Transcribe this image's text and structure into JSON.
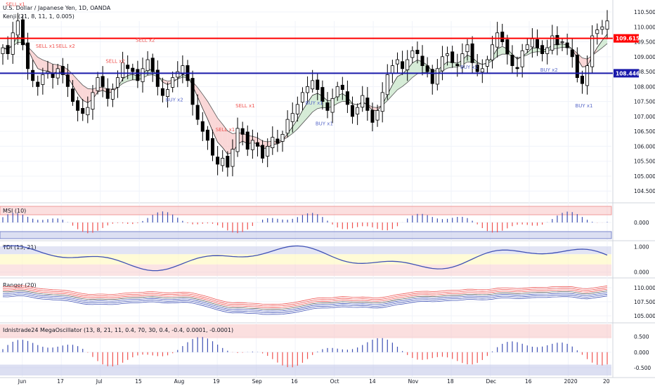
{
  "header": {
    "symbol_title": "U.S. Dollar / Japanese Yen, 1D, OANDA",
    "main_indicator": "Kenji (21, 8, 11, 1, 0.005)"
  },
  "colors": {
    "up": "#ffffff",
    "down": "#000000",
    "resistance": "#ff0000",
    "support": "#1a1aaa",
    "sell": "#ef5350",
    "buy": "#5b6bc9"
  },
  "chart_data": [
    {
      "type": "candlestick",
      "panel": "price",
      "title": "U.S. Dollar / Japanese Yen, 1D, OANDA",
      "x_tick_labels": [
        "Jun",
        "17",
        "Jul",
        "15",
        "Aug",
        "19",
        "Sep",
        "16",
        "Oct",
        "14",
        "Nov",
        "18",
        "Dec",
        "16",
        "2020",
        "20"
      ],
      "y_tick_labels": [
        "104.500",
        "105.000",
        "105.500",
        "106.000",
        "106.500",
        "107.000",
        "107.500",
        "108.000",
        "108.500",
        "109.000",
        "109.500",
        "110.000",
        "110.500"
      ],
      "ylim": [
        104.2,
        110.9
      ],
      "levels": [
        {
          "label": "109.615",
          "value": 109.615,
          "color": "#ff0000"
        },
        {
          "label": "108.446",
          "value": 108.446,
          "color": "#1a1aaa"
        }
      ],
      "close": [
        109.3,
        109.1,
        109.8,
        110.2,
        109.4,
        108.6,
        108.2,
        108.0,
        108.4,
        108.5,
        108.3,
        108.6,
        108.4,
        108.0,
        107.5,
        107.2,
        107.1,
        107.3,
        107.8,
        108.3,
        108.0,
        107.6,
        107.9,
        108.3,
        108.8,
        108.6,
        108.5,
        108.2,
        108.6,
        108.9,
        108.5,
        108.0,
        107.7,
        107.9,
        108.3,
        108.5,
        108.7,
        108.2,
        107.4,
        106.9,
        106.5,
        106.2,
        105.7,
        105.4,
        105.6,
        105.3,
        105.9,
        106.6,
        106.4,
        105.9,
        106.2,
        106.0,
        105.6,
        106.0,
        106.3,
        106.1,
        106.4,
        106.9,
        107.1,
        107.4,
        107.8,
        108.0,
        108.2,
        107.9,
        107.5,
        107.2,
        107.6,
        108.0,
        107.9,
        107.4,
        107.0,
        107.3,
        107.7,
        107.2,
        106.8,
        107.2,
        107.8,
        108.4,
        108.7,
        108.9,
        108.6,
        108.9,
        109.2,
        109.1,
        108.7,
        108.5,
        108.1,
        108.6,
        109.0,
        109.1,
        108.8,
        108.7,
        109.1,
        109.4,
        108.8,
        108.5,
        108.6,
        108.9,
        109.4,
        109.8,
        109.5,
        109.1,
        108.7,
        108.6,
        109.2,
        109.4,
        109.6,
        109.3,
        109.1,
        109.3,
        109.7,
        109.4,
        109.5,
        109.3,
        109.0,
        108.3,
        108.1,
        108.7,
        109.7,
        109.9,
        110.0,
        110.2
      ]
    },
    {
      "type": "bar",
      "panel": "oscillator",
      "title": "MSI (10)",
      "y_tick_labels": [
        "0.000"
      ],
      "ylim": [
        -1.0,
        1.0
      ]
    },
    {
      "type": "line",
      "panel": "oscillator",
      "title": "TDI (13, 21)",
      "y_tick_labels": [
        "1.000",
        "0.000"
      ],
      "ylim": [
        -0.2,
        1.2
      ]
    },
    {
      "type": "line",
      "panel": "bands",
      "title": "Ranger (20)",
      "y_tick_labels": [
        "110.000",
        "107.500",
        "105.000"
      ],
      "ylim": [
        104.0,
        111.5
      ]
    },
    {
      "type": "bar",
      "panel": "oscillator",
      "title": "Idnistrade24 MegaOscillator (13, 8, 21, 11, 0.4, 70, 30, 0.4, -0.4, 0.0001, -0.0001)",
      "y_tick_labels": [
        "0.500",
        "0.000",
        "-0.500"
      ],
      "ylim": [
        -0.75,
        0.9
      ]
    }
  ],
  "annotations": [
    {
      "text": "SELL x1",
      "kind": "sell",
      "idx": 3
    },
    {
      "text": "SELL x1",
      "kind": "sell",
      "idx": 10
    },
    {
      "text": "SELL x2",
      "kind": "sell",
      "idx": 15
    },
    {
      "text": "SELL x2",
      "kind": "sell",
      "idx": 28
    },
    {
      "text": "SELL x2",
      "kind": "sell",
      "idx": 36
    },
    {
      "text": "BUY x2",
      "kind": "buy",
      "idx": 43
    },
    {
      "text": "SELL x1",
      "kind": "sell",
      "idx": 56
    },
    {
      "text": "SELL x1",
      "kind": "sell",
      "idx": 62
    },
    {
      "text": "BUY x1",
      "kind": "buy",
      "idx": 79
    },
    {
      "text": "BUY x1",
      "kind": "buy",
      "idx": 82
    },
    {
      "text": "BUY x2",
      "kind": "buy",
      "idx": 119
    },
    {
      "text": "BUY x2",
      "kind": "buy",
      "idx": 139
    },
    {
      "text": "BUY x1",
      "kind": "buy",
      "idx": 148
    }
  ]
}
